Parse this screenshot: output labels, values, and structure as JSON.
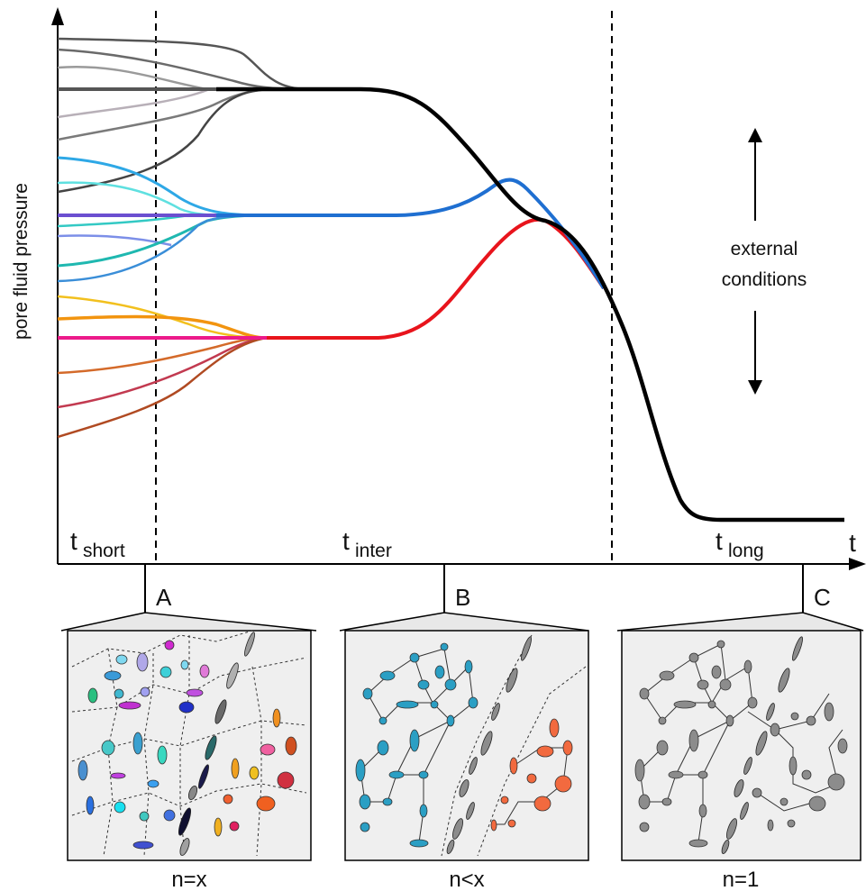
{
  "axes": {
    "y_label": "pore fluid pressure",
    "x_label": "t"
  },
  "time_regimes": [
    {
      "base": "t",
      "sub": "short"
    },
    {
      "base": "t",
      "sub": "inter"
    },
    {
      "base": "t",
      "sub": "long"
    }
  ],
  "external_label": {
    "line1": "external",
    "line2": "conditions"
  },
  "snapshots": [
    {
      "marker": "A",
      "caption": "n=x"
    },
    {
      "marker": "B",
      "caption": "n<x"
    },
    {
      "marker": "C",
      "caption": "n=1"
    }
  ],
  "colors": {
    "black_curve": "#000000",
    "blue_curve": "#1f6fd1",
    "red_curve": "#e8141c",
    "gray_group": [
      "#555555",
      "#6a6a6a",
      "#9a9a9a",
      "#b8b0b8",
      "#7a7a7a",
      "#444444"
    ],
    "blue_group": [
      "#2ea8e6",
      "#5fe0e0",
      "#6b4fd0",
      "#33c9c4",
      "#7c8fe8",
      "#1fb8b0",
      "#3a8ed8"
    ],
    "warm_group": [
      "#f2c01e",
      "#f2940f",
      "#ec1a8a",
      "#d46a2a",
      "#c23a50",
      "#b04a22"
    ],
    "panel_bg": "#efefef",
    "panel_B_cells": "#2b9fc4",
    "panel_B_orange": "#f26a3f",
    "panel_gray": "#8c8c8c"
  }
}
